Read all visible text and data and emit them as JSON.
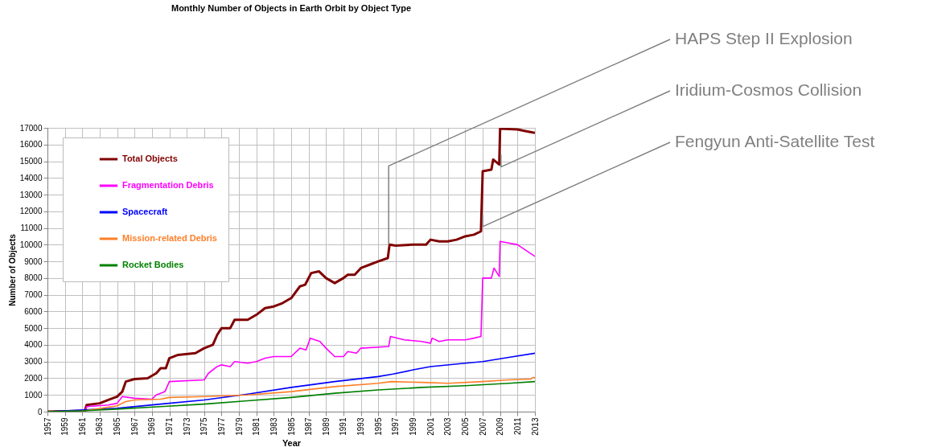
{
  "chart_data": {
    "type": "line",
    "title": "Monthly Number of Objects in Earth Orbit by Object Type",
    "xlabel": "Year",
    "ylabel": "Number of Objects",
    "xlim": [
      1957,
      2013
    ],
    "xticks": [
      1957,
      1959,
      1961,
      1963,
      1965,
      1967,
      1969,
      1971,
      1973,
      1975,
      1977,
      1979,
      1981,
      1983,
      1985,
      1987,
      1989,
      1991,
      1993,
      1995,
      1997,
      1999,
      2001,
      2003,
      2005,
      2007,
      2009,
      2011,
      2013
    ],
    "ylim": [
      0,
      17000
    ],
    "yticks": [
      0,
      1000,
      2000,
      3000,
      4000,
      5000,
      6000,
      7000,
      8000,
      9000,
      10000,
      11000,
      12000,
      13000,
      14000,
      15000,
      16000,
      17000
    ],
    "grid": true,
    "legend": "top left",
    "marker": "none",
    "line_style": "solid",
    "series": [
      {
        "name": "Total Objects",
        "color": "#800000",
        "x": [
          1957,
          1961.3,
          1961.5,
          1963,
          1964,
          1965,
          1965.6,
          1966,
          1967,
          1968.5,
          1969.5,
          1970,
          1970.6,
          1971,
          1972,
          1974,
          1975,
          1976,
          1976.5,
          1977,
          1978,
          1978.5,
          1980,
          1981,
          1982,
          1983,
          1984,
          1985,
          1986,
          1986.6,
          1987.3,
          1988.2,
          1989,
          1990,
          1991,
          1991.5,
          1992.3,
          1993,
          1994,
          1995,
          1996.1,
          1996.3,
          1997,
          1999,
          2000.5,
          2001,
          2002,
          2003,
          2004,
          2005,
          2006,
          2006.8,
          2007,
          2008,
          2008.2,
          2008.9,
          2009,
          2011,
          2012,
          2013
        ],
        "values": [
          0,
          50,
          400,
          500,
          700,
          900,
          1200,
          1800,
          1950,
          2000,
          2300,
          2600,
          2600,
          3200,
          3400,
          3500,
          3800,
          4000,
          4600,
          5000,
          5000,
          5500,
          5500,
          5800,
          6200,
          6300,
          6500,
          6800,
          7500,
          7600,
          8300,
          8400,
          8000,
          7700,
          8000,
          8200,
          8200,
          8600,
          8800,
          9000,
          9200,
          10000,
          9950,
          10000,
          10000,
          10300,
          10200,
          10200,
          10300,
          10500,
          10600,
          10800,
          14400,
          14500,
          15100,
          14800,
          16950,
          16900,
          16800,
          16700
        ]
      },
      {
        "name": "Fragmentation Debris",
        "color": "#ff00ff",
        "x": [
          1957,
          1961.3,
          1961.5,
          1964,
          1965,
          1965.6,
          1967,
          1969,
          1969.5,
          1970,
          1970.5,
          1971,
          1975,
          1975.5,
          1976.5,
          1977,
          1978,
          1978.5,
          1980,
          1981,
          1982,
          1983,
          1985,
          1986,
          1986.7,
          1987.2,
          1988.3,
          1989,
          1990,
          1991,
          1991.5,
          1992.5,
          1993,
          1996.2,
          1996.4,
          1998,
          2000,
          2001,
          2001.2,
          2002,
          2003,
          2005,
          2006,
          2006.8,
          2007,
          2008,
          2008.3,
          2008.9,
          2009,
          2011,
          2013
        ],
        "values": [
          0,
          0,
          300,
          400,
          500,
          900,
          800,
          750,
          1000,
          1100,
          1200,
          1800,
          1900,
          2300,
          2700,
          2800,
          2700,
          3000,
          2900,
          3000,
          3200,
          3300,
          3300,
          3800,
          3700,
          4400,
          4200,
          3800,
          3300,
          3300,
          3600,
          3500,
          3800,
          3900,
          4500,
          4300,
          4200,
          4100,
          4400,
          4200,
          4300,
          4300,
          4400,
          4500,
          8000,
          8000,
          8600,
          8100,
          10200,
          10000,
          9300
        ]
      },
      {
        "name": "Spacecraft",
        "color": "#0000ff",
        "x": [
          1957,
          1965,
          1970,
          1975,
          1980,
          1985,
          1990,
          1995,
          1996.7,
          1999,
          2001,
          2005,
          2007,
          2010,
          2013
        ],
        "values": [
          0,
          200,
          450,
          700,
          1050,
          1450,
          1800,
          2100,
          2250,
          2500,
          2700,
          2900,
          3000,
          3250,
          3500
        ]
      },
      {
        "name": "Mission-related Debris",
        "color": "#ff7f27",
        "x": [
          1957,
          1961,
          1963.2,
          1965,
          1966,
          1967,
          1970,
          1971,
          1975,
          1980,
          1985,
          1990,
          1995,
          1996.5,
          2000,
          2003,
          2007,
          2010,
          2012.5,
          2012.8,
          2013
        ],
        "values": [
          0,
          30,
          200,
          350,
          600,
          700,
          750,
          850,
          900,
          1000,
          1200,
          1500,
          1700,
          1800,
          1750,
          1700,
          1800,
          1900,
          1950,
          2050,
          2050
        ]
      },
      {
        "name": "Rocket Bodies",
        "color": "#008000",
        "x": [
          1957,
          1961,
          1965,
          1970,
          1975,
          1980,
          1985,
          1990,
          1995,
          2000,
          2005,
          2010,
          2013
        ],
        "values": [
          0,
          50,
          150,
          300,
          450,
          650,
          850,
          1100,
          1300,
          1450,
          1550,
          1700,
          1800
        ]
      }
    ],
    "annotations": [
      {
        "text": "HAPS Step II Explosion",
        "x": 1996.2,
        "y": 10000
      },
      {
        "text": "Iridium-Cosmos Collision",
        "x": 2009.1,
        "y": 15400
      },
      {
        "text": "Fengyun Anti-Satellite Test",
        "x": 2007.0,
        "y": 11800
      }
    ]
  }
}
